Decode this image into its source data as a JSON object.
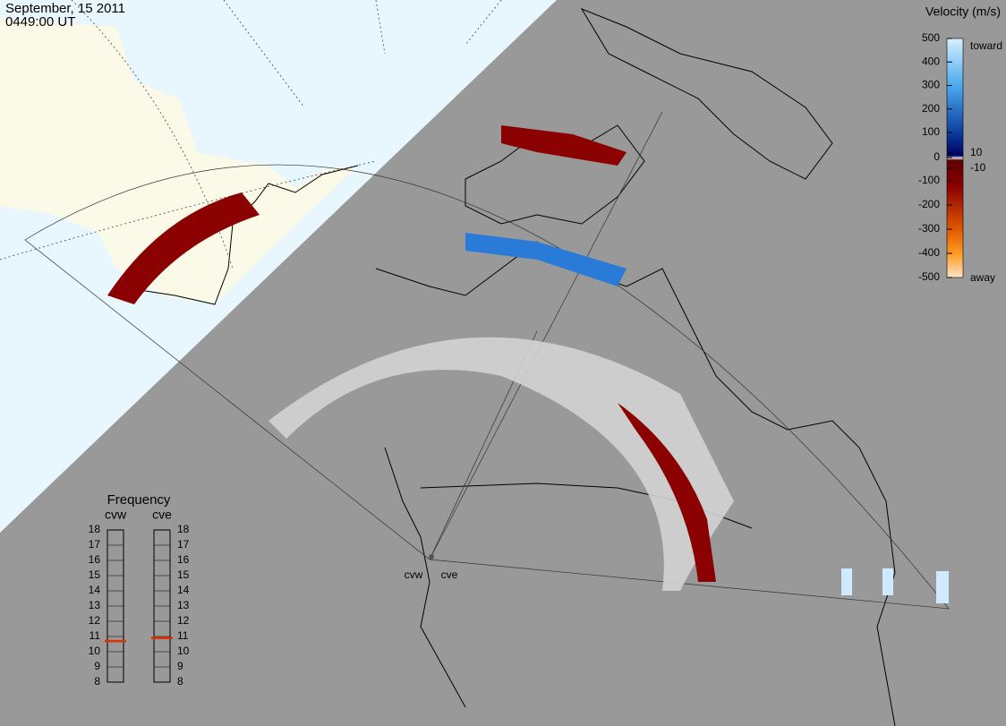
{
  "header": {
    "date": "September, 15 2011",
    "time": "0449:00 UT"
  },
  "velocity_scale": {
    "title": "Velocity (m/s)",
    "ticks": [
      500,
      400,
      300,
      200,
      100,
      10,
      0,
      -10,
      -100,
      -200,
      -300,
      -400,
      -500
    ],
    "toward": "toward",
    "away": "away"
  },
  "frequency": {
    "title": "Frequency",
    "ticks": [
      18,
      17,
      16,
      15,
      14,
      13,
      12,
      11,
      10,
      9,
      8
    ],
    "radars": [
      {
        "name": "cvw",
        "mhz": 10.7
      },
      {
        "name": "cve",
        "mhz": 10.9
      }
    ]
  },
  "sites": [
    "cvw",
    "cve"
  ]
}
